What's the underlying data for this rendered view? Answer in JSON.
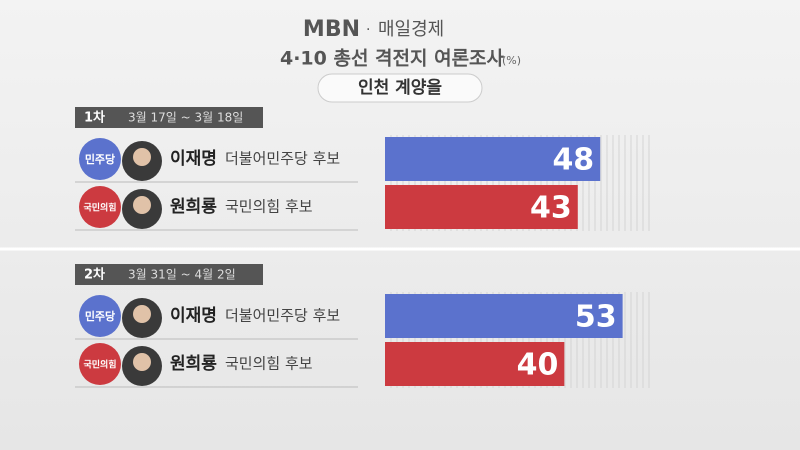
{
  "header": {
    "logo": "MBN",
    "brand": "매일경제",
    "title": "4·10 총선 격전지 여론조사",
    "unit": "(%)",
    "region": "인천 계양을"
  },
  "chart_data": [
    {
      "type": "bar",
      "round": "1차",
      "period": "3월 17일 ~ 3월 18일",
      "categories": [
        "이재명",
        "원희룡"
      ],
      "category_notes": [
        "더불어민주당 후보",
        "국민의힘 후보"
      ],
      "parties": [
        "민주당",
        "국민의힘"
      ],
      "values": [
        48,
        43
      ],
      "colors": [
        "#5b72cd",
        "#cc3a40"
      ],
      "xlim": [
        0,
        60
      ]
    },
    {
      "type": "bar",
      "round": "2차",
      "period": "3월 31일 ~ 4월 2일",
      "categories": [
        "이재명",
        "원희룡"
      ],
      "category_notes": [
        "더불어민주당 후보",
        "국민의힘 후보"
      ],
      "parties": [
        "민주당",
        "국민의힘"
      ],
      "values": [
        53,
        40
      ],
      "colors": [
        "#5b72cd",
        "#cc3a40"
      ],
      "xlim": [
        0,
        60
      ]
    }
  ]
}
